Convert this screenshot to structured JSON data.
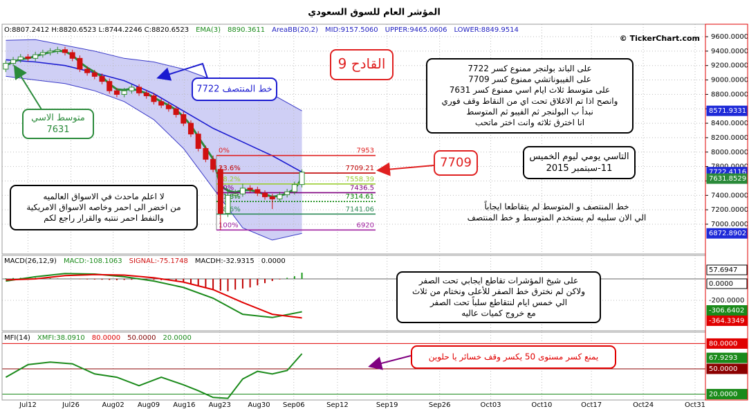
{
  "chart_data": [
    {
      "type": "candlestick",
      "title": "المؤشر العام للسوق السعودي",
      "header": [
        {
          "text": "O:8807.2412 H:8820.6523 L:8744.2246 C:8820.6523",
          "color": "#000000"
        },
        {
          "text": "EMA(3)",
          "color": "#1a8a1a"
        },
        {
          "text": "8890.3611",
          "color": "#1a8a1a"
        },
        {
          "text": "AreaBB(20,2)",
          "color": "#2020c0"
        },
        {
          "text": "MID:9157.5060",
          "color": "#2020c0"
        },
        {
          "text": "UPPER:9465.0606",
          "color": "#2020c0"
        },
        {
          "text": "LOWER:8849.9514",
          "color": "#2020c0"
        }
      ],
      "watermark": "© TickerChart.com",
      "xlim": [
        -0.5,
        94.5
      ],
      "ylim": [
        6587,
        9773
      ],
      "yticks": [
        {
          "value": 9600,
          "label": "9600.0000"
        },
        {
          "value": 9400,
          "label": "9400.0000"
        },
        {
          "value": 9200,
          "label": "9200.0000"
        },
        {
          "value": 9000,
          "label": "9000.0000"
        },
        {
          "value": 8800,
          "label": "8800.0000"
        },
        {
          "value": 8600,
          "label": "8600.0000"
        },
        {
          "value": 8400,
          "label": "8400.0000"
        },
        {
          "value": 8200,
          "label": "8200.0000"
        },
        {
          "value": 8000,
          "label": "8000.0000"
        },
        {
          "value": 7800,
          "label": "7800.0000"
        },
        {
          "value": 7600,
          "label": "7600.0000"
        },
        {
          "value": 7400,
          "label": "7400.0000"
        },
        {
          "value": 7200,
          "label": "7200.0000"
        },
        {
          "value": 7000,
          "label": "7000.0000"
        }
      ],
      "grid": true,
      "x": [
        0,
        1,
        2,
        3,
        4,
        5,
        6,
        7,
        8,
        9,
        10,
        11,
        12,
        13,
        14,
        15,
        16,
        17,
        18,
        19,
        20,
        21,
        22,
        23,
        24,
        25,
        26,
        27,
        28,
        29,
        30,
        31,
        32,
        33,
        34,
        35,
        36,
        37,
        38,
        39,
        40
      ],
      "open": [
        9150,
        9230,
        9280,
        9320,
        9300,
        9350,
        9380,
        9400,
        9420,
        9380,
        9300,
        9150,
        9100,
        9050,
        8980,
        8850,
        8800,
        8850,
        8900,
        8820,
        8780,
        8700,
        8650,
        8600,
        8520,
        8400,
        8250,
        8050,
        7900,
        7760,
        7150,
        7400,
        7420,
        7500,
        7480,
        7430,
        7380,
        7350,
        7410,
        7450,
        7550
      ],
      "high": [
        9270,
        9320,
        9360,
        9360,
        9390,
        9420,
        9440,
        9460,
        9460,
        9420,
        9340,
        9190,
        9140,
        9090,
        9020,
        8890,
        8890,
        8940,
        8940,
        8860,
        8820,
        8740,
        8690,
        8640,
        8560,
        8440,
        8290,
        8090,
        7953,
        7800,
        7500,
        7480,
        7560,
        7540,
        7520,
        7470,
        7420,
        7450,
        7490,
        7590,
        7760
      ],
      "low": [
        9110,
        9190,
        9240,
        9260,
        9260,
        9310,
        9340,
        9360,
        9340,
        9260,
        9110,
        9060,
        9010,
        8940,
        8810,
        8760,
        8760,
        8810,
        8780,
        8740,
        8660,
        8610,
        8560,
        8480,
        8360,
        8210,
        8010,
        7860,
        7720,
        6920,
        7100,
        7360,
        7380,
        7440,
        7390,
        7340,
        7210,
        7310,
        7370,
        7410,
        7510
      ],
      "close": [
        9230,
        9280,
        9320,
        9300,
        9350,
        9380,
        9400,
        9420,
        9380,
        9300,
        9150,
        9100,
        9050,
        8980,
        8850,
        8800,
        8850,
        8900,
        8820,
        8780,
        8700,
        8650,
        8600,
        8520,
        8400,
        8250,
        8050,
        7900,
        7760,
        7150,
        7400,
        7420,
        7500,
        7480,
        7430,
        7380,
        7350,
        7410,
        7450,
        7550,
        7722
      ],
      "up_color": "#2e8b2e",
      "down_color": "#d01010",
      "band_color": "#cfcff5",
      "series": [
        {
          "color": "#3a3ac8",
          "x": [
            0,
            4,
            8,
            12,
            16,
            20,
            24,
            28,
            32,
            36,
            40
          ],
          "values": [
            9550,
            9560,
            9480,
            9400,
            9300,
            9250,
            9150,
            9000,
            8900,
            8800,
            8571.9331
          ]
        },
        {
          "color": "#1a1ad0",
          "x": [
            0,
            4,
            8,
            12,
            16,
            20,
            24,
            28,
            32,
            36,
            40
          ],
          "values": [
            9280,
            9250,
            9200,
            9100,
            8990,
            8810,
            8570,
            8330,
            8140,
            7950,
            7722.4116
          ]
        },
        {
          "color": "#3a3ac8",
          "x": [
            0,
            4,
            8,
            12,
            16,
            20,
            24,
            28,
            32,
            36,
            40
          ],
          "values": [
            9050,
            9000,
            8950,
            8850,
            8700,
            8450,
            8050,
            7500,
            6950,
            6780,
            6872.8902
          ]
        },
        {
          "color": "#2a8a3a",
          "x": [
            0,
            1,
            2,
            3,
            4,
            5,
            6,
            7,
            8,
            9,
            10,
            11,
            12,
            13,
            14,
            15,
            16,
            17,
            18,
            19,
            20,
            21,
            22,
            23,
            24,
            25,
            26,
            27,
            28,
            29,
            30,
            31,
            32,
            33,
            34,
            35,
            36,
            37,
            38,
            39,
            40
          ],
          "values": [
            9200,
            9250,
            9290,
            9300,
            9330,
            9360,
            9385,
            9405,
            9395,
            9345,
            9245,
            9170,
            9110,
            9045,
            8945,
            8870,
            8860,
            8880,
            8850,
            8815,
            8755,
            8700,
            8650,
            8585,
            8490,
            8370,
            8210,
            8055,
            7905,
            7530,
            7465,
            7440,
            7470,
            7475,
            7450,
            7415,
            7380,
            7395,
            7425,
            7490,
            7631.8529
          ]
        }
      ],
      "fib": [
        {
          "label": "0%",
          "value": 7953,
          "color": "#e02020"
        },
        {
          "label": "23.6%",
          "value": 7709.21,
          "color": "#c00000"
        },
        {
          "label": "38.2%",
          "value": 7558.39,
          "color": "#9acd32"
        },
        {
          "label": "50%",
          "value": 7436.5,
          "color": "#800080"
        },
        {
          "label": "61.8%",
          "value": 7314.61,
          "color": "#008000"
        },
        {
          "label": "78.6%",
          "value": 7141.06,
          "color": "#2e8b57"
        },
        {
          "label": "100%",
          "value": 6920,
          "color": "#a020a0"
        }
      ],
      "annotations": [
        {
          "lines": [
            "القادح 9"
          ],
          "color": "#e02020",
          "boxed": true
        },
        {
          "lines": [
            "على الباند  بولنجر ممنوع كسر 7722",
            "على الفيبوناتشي  ممنوع كسر 7709",
            "على متوسط ثلاث ايام اسي ممنوع كسر 7631",
            "وانصح اذا تم الاغلاق تحت اي من النقاط وقف فوري",
            "نبدأ ب البولنجر ثم الفيبو ثم المتوسط",
            "انا اخترق ثلاثه وانت اختر ماتحب"
          ],
          "color": "#000000",
          "boxed": true
        },
        {
          "lines": [
            "خط المنتصف 7722"
          ],
          "color": "#1a1ad0",
          "boxed": true
        },
        {
          "lines": [
            "متوسط الاسي",
            "7631"
          ],
          "color": "#2a8a3a",
          "boxed": true
        },
        {
          "lines": [
            "7709"
          ],
          "color": "#e02020",
          "boxed": true
        },
        {
          "lines": [
            "التاسي يومي ليوم الخميس",
            "11-سبتمبر 2015"
          ],
          "color": "#000000",
          "boxed": true
        },
        {
          "lines": [
            "لا اعلم ماحدث في الاسواق العالميه",
            "من اخضر الى احمر وخاصه الاسواق الامريكية",
            "والنفط احمر   ننتبه والقرار راجع لكم"
          ],
          "color": "#000000",
          "boxed": true
        },
        {
          "lines": [
            "خط المنتصف و المتوسط لم يتقاطعا ايجاباً",
            "الي الان سلبيه لم يستخدم المتوسط و خط المنتصف"
          ],
          "color": "#000000",
          "boxed": false
        }
      ]
    },
    {
      "type": "macd",
      "header": [
        {
          "text": "MACD(26,12,9)",
          "color": "#000000"
        },
        {
          "text": "MACD:-108.1063",
          "color": "#1a8a1a"
        },
        {
          "text": "SIGNAL:-75.1748",
          "color": "#d01010"
        },
        {
          "text": "MACDH:-32.9315",
          "color": "#000000"
        },
        {
          "text": "0.0000",
          "color": "#000000"
        }
      ],
      "xlim": [
        -0.5,
        94.5
      ],
      "ylim": [
        -484,
        219
      ],
      "yticks": [
        {
          "value": 0,
          "label": "0.0000"
        },
        {
          "value": -200,
          "label": "-200.0000"
        }
      ],
      "x": [
        0,
        1,
        2,
        3,
        4,
        5,
        6,
        7,
        8,
        9,
        10,
        11,
        12,
        13,
        14,
        15,
        16,
        17,
        18,
        19,
        20,
        21,
        22,
        23,
        24,
        25,
        26,
        27,
        28,
        29,
        30,
        31,
        32,
        33,
        34,
        35,
        36,
        37,
        38,
        39,
        40
      ],
      "histogram": [
        5,
        8,
        10,
        12,
        10,
        8,
        6,
        4,
        2,
        0,
        -3,
        -5,
        -6,
        -8,
        -10,
        -12,
        -10,
        -8,
        -6,
        -5,
        -8,
        -12,
        -15,
        -20,
        -30,
        -45,
        -60,
        -80,
        -100,
        -110,
        -115,
        -100,
        -90,
        -80,
        -60,
        -40,
        -20,
        -5,
        10,
        25,
        57.6947
      ],
      "hist_colors": {
        "up": "#1a9a1a",
        "down": "#c00000"
      },
      "series": [
        {
          "color": "#1a8a1a",
          "x": [
            0,
            4,
            8,
            12,
            16,
            20,
            24,
            28,
            32,
            36,
            40
          ],
          "values": [
            -20,
            20,
            50,
            45,
            20,
            -20,
            -80,
            -180,
            -330,
            -360,
            -306.6402
          ]
        },
        {
          "color": "#e00000",
          "x": [
            0,
            4,
            8,
            12,
            16,
            20,
            24,
            28,
            32,
            36,
            40
          ],
          "values": [
            -10,
            0,
            30,
            40,
            35,
            10,
            -30,
            -100,
            -220,
            -330,
            -364.3349
          ]
        }
      ],
      "annotations": [
        {
          "lines": [
            "على شيخ المؤشرات تقاطع ايجابي تحت الصفر",
            "ولاكن لم نخترق خط الصفر للأعلى ونختام من ثلاث",
            "الي خمس ايام لنتقاطع سلباً تحت الصفر",
            "مع خروج كميات عاليه"
          ],
          "color": "#000000",
          "boxed": true
        }
      ]
    },
    {
      "type": "line",
      "header": [
        {
          "text": "MFI(14)",
          "color": "#000000"
        },
        {
          "text": "XMFI:38.0910",
          "color": "#1a8a1a"
        },
        {
          "text": "80.0000",
          "color": "#e00000"
        },
        {
          "text": "50.0000",
          "color": "#800000"
        },
        {
          "text": "20.0000",
          "color": "#1a8a1a"
        }
      ],
      "xlim": [
        -0.5,
        94.5
      ],
      "xticks": [
        {
          "value": 3.0,
          "label": "Jul12"
        },
        {
          "value": 8.8,
          "label": "Jul26"
        },
        {
          "value": 14.5,
          "label": "Aug02"
        },
        {
          "value": 19.3,
          "label": "Aug09"
        },
        {
          "value": 24.1,
          "label": "Aug16"
        },
        {
          "value": 28.9,
          "label": "Aug23"
        },
        {
          "value": 34.2,
          "label": "Aug30"
        },
        {
          "value": 38.9,
          "label": "Sep06"
        },
        {
          "value": 44.8,
          "label": "Sep12"
        },
        {
          "value": 51.5,
          "label": "Sep19"
        },
        {
          "value": 58.6,
          "label": "Sep26"
        },
        {
          "value": 65.5,
          "label": "Oct03"
        },
        {
          "value": 72.4,
          "label": "Oct10"
        },
        {
          "value": 79.1,
          "label": "Oct17"
        },
        {
          "value": 86.1,
          "label": "Oct24"
        },
        {
          "value": 93.1,
          "label": "Oct31"
        }
      ],
      "ylim": [
        13,
        93.5
      ],
      "yticks": [
        {
          "value": 80,
          "label": "80.0000"
        },
        {
          "value": 50,
          "label": "50.0000"
        },
        {
          "value": 20,
          "label": "20.0000"
        }
      ],
      "level_colors": [
        "#e00000",
        "#8b0000",
        "#1a8a1a"
      ],
      "series": [
        {
          "color": "#1a8a1a",
          "x": [
            0,
            3,
            6,
            9,
            12,
            15,
            18,
            21,
            24,
            26,
            28,
            30,
            32,
            34,
            36,
            38,
            40
          ],
          "values": [
            40,
            55,
            58,
            56,
            44,
            40,
            30,
            40,
            31,
            24,
            16,
            15,
            38,
            47,
            44,
            48,
            67.9293
          ]
        }
      ],
      "annotations": [
        {
          "lines": [
            "يمنع كسر مستوى 50 يكسر وقف خسائر يا حلوين"
          ],
          "color": "#e00000",
          "boxed": true
        }
      ]
    }
  ]
}
